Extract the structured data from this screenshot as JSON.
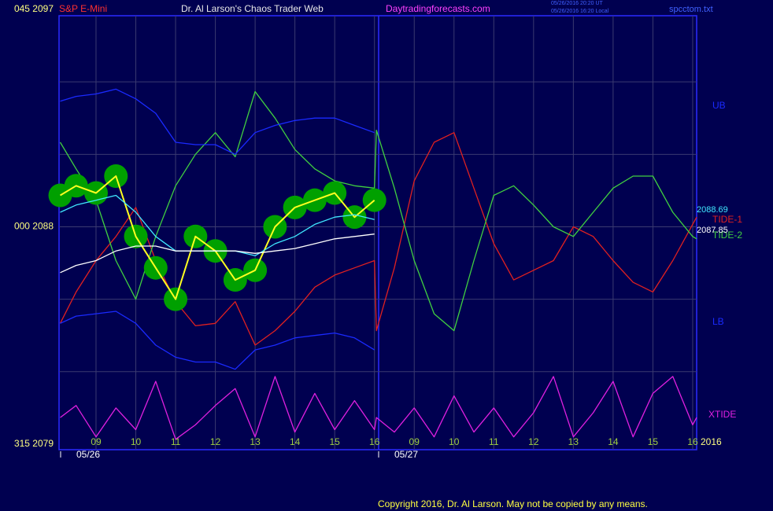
{
  "chart_data": {
    "type": "line",
    "title": "Dr. Al Larson's Chaos Trader Web",
    "symbol": "S&P E-Mini",
    "site": "Daytradingforecasts.com",
    "timestamps": [
      "05/26/2016 20:20 UT",
      "05/26/2016 16:20 Local"
    ],
    "file": "spcctom.txt",
    "year": "2016",
    "dates": [
      "05/26",
      "05/27"
    ],
    "copyright": "Copyright 2016, Dr. Al Larson. May not be copied by any means.",
    "xlim": [
      8.07,
      24.1
    ],
    "ylim": [
      2078.77,
      2096.74
    ],
    "xticks": [
      {
        "value": 9,
        "label": "09"
      },
      10,
      11,
      12,
      13,
      14,
      15,
      16,
      {
        "value": 17,
        "label": "09"
      },
      {
        "value": 18,
        "label": "10"
      },
      {
        "value": 19,
        "label": "11"
      },
      {
        "value": 20,
        "label": "12"
      },
      {
        "value": 21,
        "label": "13"
      },
      {
        "value": 22,
        "label": "14"
      },
      {
        "value": 23,
        "label": "15"
      },
      {
        "value": 24,
        "label": "16"
      }
    ],
    "yticks": [
      {
        "value": 2097,
        "label": "045 2097"
      },
      {
        "value": 2088,
        "label": "000 2088"
      },
      {
        "value": 2079,
        "label": "315 2079"
      }
    ],
    "ygrid": [
      2094,
      2091,
      2088,
      2085,
      2082
    ],
    "grid": true,
    "last_values": [
      2088.69,
      2087.85
    ],
    "last_value_colors": [
      "#40e8ff",
      "#ffffff"
    ],
    "series": [
      {
        "name": "TIDE-1",
        "color": "#e02020",
        "x": [
          8.1,
          8.5,
          9,
          9.5,
          10,
          10.5,
          11,
          11.5,
          12,
          12.5,
          13,
          13.5,
          14,
          14.5,
          15,
          15.5,
          16,
          16.05,
          16.5,
          17,
          17.5,
          18,
          18.5,
          19,
          19.5,
          20,
          20.5,
          21,
          21.5,
          22,
          22.5,
          23,
          23.5,
          24,
          24.1
        ],
        "values": [
          2084.0,
          2085.3,
          2086.6,
          2087.6,
          2088.8,
          2086.6,
          2084.9,
          2083.9,
          2084.0,
          2084.9,
          2083.1,
          2083.7,
          2084.5,
          2085.5,
          2086.0,
          2086.3,
          2086.6,
          2083.7,
          2086.3,
          2089.9,
          2091.5,
          2091.9,
          2089.6,
          2087.3,
          2085.8,
          2086.2,
          2086.6,
          2088.0,
          2087.6,
          2086.6,
          2085.7,
          2085.3,
          2086.6,
          2088.1,
          2088.4
        ]
      },
      {
        "name": "TIDE-2",
        "color": "#40d040",
        "x": [
          8.1,
          8.5,
          9,
          9.5,
          10,
          10.5,
          11,
          11.5,
          12,
          12.5,
          13,
          13.5,
          14,
          14.5,
          15,
          15.5,
          16,
          16.05,
          16.5,
          17,
          17.5,
          18,
          18.5,
          19,
          19.5,
          20,
          20.5,
          21,
          21.5,
          22,
          22.5,
          23,
          23.5,
          24,
          24.1
        ],
        "values": [
          2091.5,
          2090.4,
          2089.1,
          2086.6,
          2085.0,
          2087.6,
          2089.7,
          2091.0,
          2091.9,
          2090.9,
          2093.6,
          2092.5,
          2091.2,
          2090.4,
          2089.9,
          2089.7,
          2089.6,
          2092.0,
          2089.6,
          2086.6,
          2084.4,
          2083.7,
          2086.6,
          2089.3,
          2089.7,
          2088.9,
          2088.0,
          2087.6,
          2088.6,
          2089.6,
          2090.1,
          2090.1,
          2088.6,
          2087.6,
          2087.5
        ]
      },
      {
        "name": "XTIDE",
        "color": "#e020e0",
        "x": [
          8.1,
          8.5,
          9,
          9.5,
          10,
          10.5,
          11,
          11.5,
          12,
          12.5,
          13,
          13.5,
          14,
          14.5,
          15,
          15.5,
          16,
          16.05,
          16.5,
          17,
          17.5,
          18,
          18.5,
          19,
          19.5,
          20,
          20.5,
          21,
          21.5,
          22,
          22.5,
          23,
          23.5,
          24,
          24.1
        ],
        "values": [
          2080.1,
          2080.6,
          2079.3,
          2080.5,
          2079.6,
          2081.6,
          2079.2,
          2079.8,
          2080.6,
          2081.3,
          2079.3,
          2081.8,
          2079.5,
          2081.1,
          2079.6,
          2080.8,
          2079.6,
          2080.1,
          2079.5,
          2080.5,
          2079.3,
          2081.0,
          2079.5,
          2080.5,
          2079.3,
          2080.3,
          2081.8,
          2079.3,
          2080.3,
          2081.6,
          2079.3,
          2081.1,
          2081.8,
          2079.8,
          2080.1
        ]
      },
      {
        "name": "UB",
        "color": "#1a2aff",
        "x": [
          8.1,
          8.5,
          9,
          9.5,
          10,
          10.5,
          11,
          11.5,
          12,
          12.5,
          13,
          13.5,
          14,
          14.5,
          15,
          15.5,
          16
        ],
        "values": [
          2093.2,
          2093.4,
          2093.5,
          2093.7,
          2093.3,
          2092.7,
          2091.5,
          2091.4,
          2091.4,
          2091.0,
          2091.9,
          2092.2,
          2092.4,
          2092.5,
          2092.5,
          2092.2,
          2091.9
        ]
      },
      {
        "name": "LB",
        "color": "#1a2aff",
        "x": [
          8.1,
          8.5,
          9,
          9.5,
          10,
          10.5,
          11,
          11.5,
          12,
          12.5,
          13,
          13.5,
          14,
          14.5,
          15,
          15.5,
          16
        ],
        "values": [
          2084.0,
          2084.3,
          2084.4,
          2084.5,
          2084.0,
          2083.1,
          2082.6,
          2082.4,
          2082.4,
          2082.1,
          2082.9,
          2083.1,
          2083.4,
          2083.5,
          2083.6,
          2083.4,
          2082.9
        ]
      },
      {
        "color": "#ffff20",
        "marker_color": "#00a000",
        "x": [
          8.1,
          8.5,
          9,
          9.5,
          10,
          10.5,
          11,
          11.5,
          12,
          12.5,
          13,
          13.5,
          14,
          14.5,
          15,
          15.5,
          16
        ],
        "values": [
          2089.3,
          2089.7,
          2089.4,
          2090.1,
          2087.6,
          2086.3,
          2085.0,
          2087.6,
          2087.0,
          2085.8,
          2086.2,
          2088.0,
          2088.8,
          2089.1,
          2089.4,
          2088.4,
          2089.1
        ]
      },
      {
        "color": "#40e8ff",
        "x": [
          8.1,
          8.5,
          9,
          9.5,
          10,
          10.5,
          11,
          11.5,
          12,
          12.5,
          13,
          13.5,
          14,
          14.5,
          15,
          15.5,
          16
        ],
        "values": [
          2088.6,
          2088.9,
          2089.1,
          2089.3,
          2088.6,
          2087.6,
          2087.0,
          2087.0,
          2087.0,
          2087.0,
          2086.8,
          2087.3,
          2087.6,
          2088.1,
          2088.4,
          2088.5,
          2088.3
        ]
      },
      {
        "color": "#ffffff",
        "x": [
          8.1,
          8.5,
          9,
          9.5,
          10,
          10.5,
          11,
          11.5,
          12,
          12.5,
          13,
          13.5,
          14,
          14.5,
          15,
          15.5,
          16
        ],
        "values": [
          2086.1,
          2086.4,
          2086.6,
          2087.0,
          2087.2,
          2087.2,
          2087.0,
          2087.0,
          2087.0,
          2087.0,
          2086.9,
          2087.0,
          2087.1,
          2087.3,
          2087.5,
          2087.6,
          2087.7
        ]
      }
    ]
  }
}
